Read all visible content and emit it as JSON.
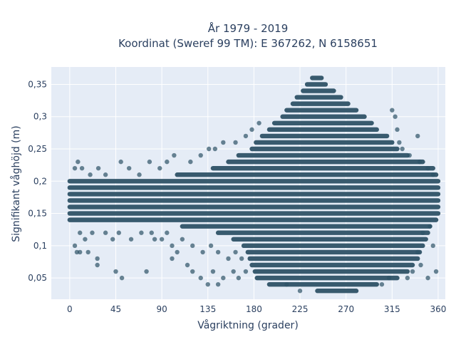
{
  "chart_data": {
    "type": "scatter",
    "title_lines": [
      "År 1979 - 2019",
      "Koordinat (Sweref 99 TM): E 367262, N 6158651"
    ],
    "xlabel": "Vågriktning (grader)",
    "ylabel": "Signifikant våghöjd (m)",
    "xlim": [
      -18,
      367
    ],
    "ylim": [
      0.017,
      0.377
    ],
    "x_ticks": [
      0,
      45,
      90,
      135,
      180,
      225,
      270,
      315,
      360
    ],
    "x_tick_labels": [
      "0",
      "45",
      "90",
      "135",
      "180",
      "225",
      "270",
      "315",
      "360"
    ],
    "y_ticks": [
      0.05,
      0.1,
      0.15,
      0.2,
      0.25,
      0.3,
      0.35
    ],
    "y_tick_labels": [
      "0,05",
      "0,1",
      "0,15",
      "0,2",
      "0,25",
      "0,3",
      "0,35"
    ],
    "grid": true,
    "legend": false,
    "marker_color": "#2e5266",
    "background_color": "#e5ecf6",
    "y_step": 0.01,
    "dense_bands": [
      {
        "y": 0.03,
        "x_range": [
          242,
          280
        ]
      },
      {
        "y": 0.04,
        "x_range": [
          195,
          300
        ]
      },
      {
        "y": 0.05,
        "x_range": [
          183,
          320
        ]
      },
      {
        "y": 0.06,
        "x_range": [
          181,
          330
        ]
      },
      {
        "y": 0.07,
        "x_range": [
          178,
          335
        ]
      },
      {
        "y": 0.08,
        "x_range": [
          176,
          340
        ]
      },
      {
        "y": 0.09,
        "x_range": [
          174,
          342
        ]
      },
      {
        "y": 0.1,
        "x_range": [
          170,
          345
        ]
      },
      {
        "y": 0.11,
        "x_range": [
          160,
          348
        ]
      },
      {
        "y": 0.12,
        "x_range": [
          145,
          350
        ]
      },
      {
        "y": 0.13,
        "x_range": [
          110,
          352
        ]
      },
      {
        "y": 0.14,
        "x_range": [
          0,
          358
        ]
      },
      {
        "y": 0.15,
        "x_range": [
          0,
          360
        ]
      },
      {
        "y": 0.16,
        "x_range": [
          0,
          360
        ]
      },
      {
        "y": 0.17,
        "x_range": [
          0,
          360
        ]
      },
      {
        "y": 0.18,
        "x_range": [
          0,
          360
        ]
      },
      {
        "y": 0.19,
        "x_range": [
          0,
          360
        ]
      },
      {
        "y": 0.2,
        "x_range": [
          0,
          360
        ]
      },
      {
        "y": 0.21,
        "x_range": [
          105,
          358
        ]
      },
      {
        "y": 0.22,
        "x_range": [
          140,
          355
        ]
      },
      {
        "y": 0.23,
        "x_range": [
          155,
          345
        ]
      },
      {
        "y": 0.24,
        "x_range": [
          165,
          330
        ]
      },
      {
        "y": 0.25,
        "x_range": [
          178,
          320
        ]
      },
      {
        "y": 0.26,
        "x_range": [
          182,
          315
        ]
      },
      {
        "y": 0.27,
        "x_range": [
          188,
          310
        ]
      },
      {
        "y": 0.28,
        "x_range": [
          195,
          300
        ]
      },
      {
        "y": 0.29,
        "x_range": [
          200,
          295
        ]
      },
      {
        "y": 0.3,
        "x_range": [
          208,
          288
        ]
      },
      {
        "y": 0.31,
        "x_range": [
          212,
          280
        ]
      },
      {
        "y": 0.32,
        "x_range": [
          218,
          272
        ]
      },
      {
        "y": 0.33,
        "x_range": [
          222,
          265
        ]
      },
      {
        "y": 0.34,
        "x_range": [
          228,
          258
        ]
      },
      {
        "y": 0.35,
        "x_range": [
          232,
          250
        ]
      },
      {
        "y": 0.36,
        "x_range": [
          237,
          246
        ]
      }
    ],
    "scatter_points": [
      {
        "x": 5,
        "y": 0.1
      },
      {
        "x": 7,
        "y": 0.09
      },
      {
        "x": 10,
        "y": 0.09
      },
      {
        "x": 18,
        "y": 0.09
      },
      {
        "x": 27,
        "y": 0.07
      },
      {
        "x": 27,
        "y": 0.08
      },
      {
        "x": 45,
        "y": 0.06
      },
      {
        "x": 51,
        "y": 0.05
      },
      {
        "x": 75,
        "y": 0.06
      },
      {
        "x": 83,
        "y": 0.11
      },
      {
        "x": 105,
        "y": 0.09
      },
      {
        "x": 100,
        "y": 0.08
      },
      {
        "x": 115,
        "y": 0.07
      },
      {
        "x": 120,
        "y": 0.06
      },
      {
        "x": 128,
        "y": 0.05
      },
      {
        "x": 135,
        "y": 0.04
      },
      {
        "x": 140,
        "y": 0.06
      },
      {
        "x": 145,
        "y": 0.04
      },
      {
        "x": 150,
        "y": 0.05
      },
      {
        "x": 160,
        "y": 0.06
      },
      {
        "x": 165,
        "y": 0.05
      },
      {
        "x": 172,
        "y": 0.06
      },
      {
        "x": 5,
        "y": 0.22
      },
      {
        "x": 8,
        "y": 0.23
      },
      {
        "x": 12,
        "y": 0.22
      },
      {
        "x": 20,
        "y": 0.21
      },
      {
        "x": 28,
        "y": 0.22
      },
      {
        "x": 35,
        "y": 0.21
      },
      {
        "x": 50,
        "y": 0.23
      },
      {
        "x": 58,
        "y": 0.22
      },
      {
        "x": 68,
        "y": 0.21
      },
      {
        "x": 78,
        "y": 0.23
      },
      {
        "x": 88,
        "y": 0.22
      },
      {
        "x": 95,
        "y": 0.23
      },
      {
        "x": 102,
        "y": 0.24
      },
      {
        "x": 118,
        "y": 0.23
      },
      {
        "x": 128,
        "y": 0.24
      },
      {
        "x": 136,
        "y": 0.25
      },
      {
        "x": 142,
        "y": 0.25
      },
      {
        "x": 150,
        "y": 0.26
      },
      {
        "x": 162,
        "y": 0.26
      },
      {
        "x": 172,
        "y": 0.27
      },
      {
        "x": 178,
        "y": 0.28
      },
      {
        "x": 185,
        "y": 0.29
      },
      {
        "x": 10,
        "y": 0.12
      },
      {
        "x": 15,
        "y": 0.11
      },
      {
        "x": 22,
        "y": 0.12
      },
      {
        "x": 35,
        "y": 0.12
      },
      {
        "x": 42,
        "y": 0.11
      },
      {
        "x": 48,
        "y": 0.12
      },
      {
        "x": 60,
        "y": 0.11
      },
      {
        "x": 70,
        "y": 0.12
      },
      {
        "x": 80,
        "y": 0.12
      },
      {
        "x": 90,
        "y": 0.11
      },
      {
        "x": 95,
        "y": 0.12
      },
      {
        "x": 100,
        "y": 0.1
      },
      {
        "x": 110,
        "y": 0.11
      },
      {
        "x": 120,
        "y": 0.1
      },
      {
        "x": 130,
        "y": 0.09
      },
      {
        "x": 138,
        "y": 0.1
      },
      {
        "x": 145,
        "y": 0.09
      },
      {
        "x": 155,
        "y": 0.08
      },
      {
        "x": 162,
        "y": 0.09
      },
      {
        "x": 168,
        "y": 0.08
      },
      {
        "x": 315,
        "y": 0.31
      },
      {
        "x": 318,
        "y": 0.3
      },
      {
        "x": 320,
        "y": 0.28
      },
      {
        "x": 322,
        "y": 0.26
      },
      {
        "x": 325,
        "y": 0.25
      },
      {
        "x": 332,
        "y": 0.24
      },
      {
        "x": 340,
        "y": 0.27
      },
      {
        "x": 342,
        "y": 0.23
      },
      {
        "x": 350,
        "y": 0.22
      },
      {
        "x": 355,
        "y": 0.21
      },
      {
        "x": 330,
        "y": 0.05
      },
      {
        "x": 335,
        "y": 0.06
      },
      {
        "x": 343,
        "y": 0.07
      },
      {
        "x": 350,
        "y": 0.05
      },
      {
        "x": 358,
        "y": 0.06
      },
      {
        "x": 340,
        "y": 0.09
      },
      {
        "x": 355,
        "y": 0.1
      },
      {
        "x": 345,
        "y": 0.12
      },
      {
        "x": 352,
        "y": 0.13
      },
      {
        "x": 225,
        "y": 0.03
      },
      {
        "x": 212,
        "y": 0.04
      },
      {
        "x": 305,
        "y": 0.04
      },
      {
        "x": 312,
        "y": 0.05
      }
    ]
  }
}
